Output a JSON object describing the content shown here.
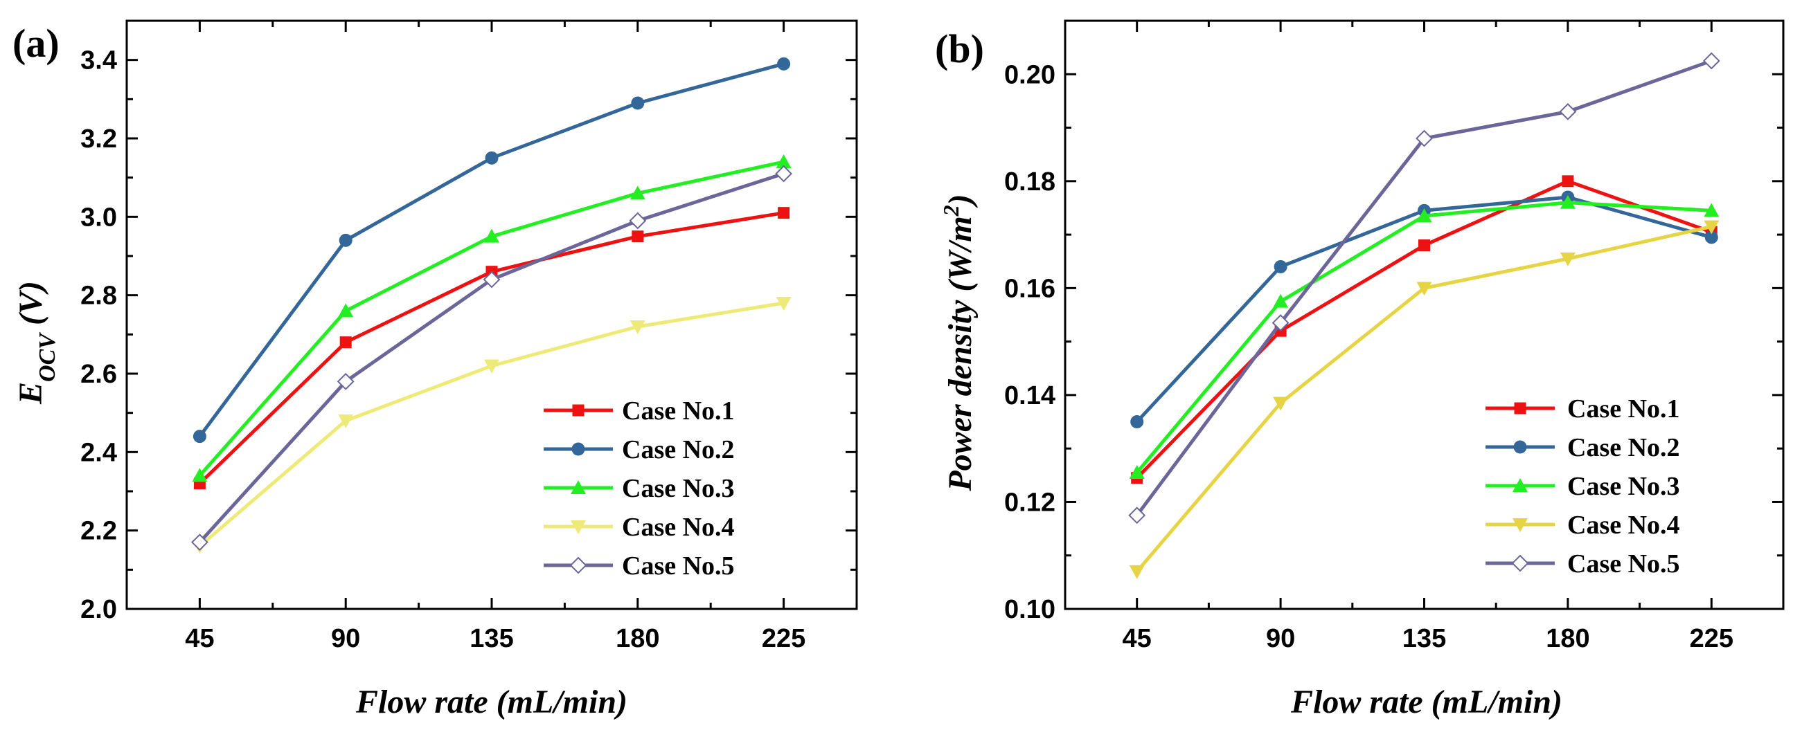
{
  "figure": {
    "panel_a": "(a)",
    "panel_b": "(b)"
  },
  "chart_data": [
    {
      "type": "line",
      "panel": "(a)",
      "xlabel": "Flow rate (mL/min)",
      "ylabel": "E_OCV (V)",
      "ylabel_main": "E",
      "ylabel_sub": "OCV",
      "ylabel_unit": " (V)",
      "x": [
        45,
        90,
        135,
        180,
        225
      ],
      "xlim": [
        22.5,
        247.5
      ],
      "ylim": [
        2.0,
        3.5
      ],
      "xticks": [
        "45",
        "90",
        "135",
        "180",
        "225"
      ],
      "yticks": [
        "2.0",
        "2.2",
        "2.4",
        "2.6",
        "2.8",
        "3.0",
        "3.2",
        "3.4"
      ],
      "legend_position": "bottom-right",
      "series": [
        {
          "name": "Case No.1",
          "color": "#ee1111",
          "marker": "square",
          "values": [
            2.32,
            2.68,
            2.86,
            2.95,
            3.01
          ]
        },
        {
          "name": "Case No.2",
          "color": "#336699",
          "marker": "circle",
          "values": [
            2.44,
            2.94,
            3.15,
            3.29,
            3.39
          ]
        },
        {
          "name": "Case No.3",
          "color": "#22ee22",
          "marker": "triangle-up",
          "values": [
            2.34,
            2.76,
            2.95,
            3.06,
            3.14
          ]
        },
        {
          "name": "Case No.4",
          "color": "#eeea77",
          "marker": "triangle-down",
          "values": [
            2.16,
            2.48,
            2.62,
            2.72,
            2.78
          ]
        },
        {
          "name": "Case No.5",
          "color": "#6b6699",
          "marker": "diamond-open",
          "values": [
            2.17,
            2.58,
            2.84,
            2.99,
            3.11
          ]
        }
      ]
    },
    {
      "type": "line",
      "panel": "(b)",
      "xlabel": "Flow rate (mL/min)",
      "ylabel": "Power density (W/m2)",
      "ylabel_main": "Power density (W/m",
      "ylabel_sup": "2",
      "ylabel_close": ")",
      "x": [
        45,
        90,
        135,
        180,
        225
      ],
      "xlim": [
        22.5,
        247.5
      ],
      "ylim": [
        0.1,
        0.21
      ],
      "xticks": [
        "45",
        "90",
        "135",
        "180",
        "225"
      ],
      "yticks": [
        "0.10",
        "0.12",
        "0.14",
        "0.16",
        "0.18",
        "0.20"
      ],
      "legend_position": "bottom-right",
      "series": [
        {
          "name": "Case No.1",
          "color": "#ee1111",
          "marker": "square",
          "values": [
            0.1245,
            0.152,
            0.168,
            0.18,
            0.1705
          ]
        },
        {
          "name": "Case No.2",
          "color": "#336699",
          "marker": "circle",
          "values": [
            0.135,
            0.164,
            0.1745,
            0.177,
            0.1695
          ]
        },
        {
          "name": "Case No.3",
          "color": "#22ee22",
          "marker": "triangle-up",
          "values": [
            0.1255,
            0.1575,
            0.1735,
            0.176,
            0.1745
          ]
        },
        {
          "name": "Case No.4",
          "color": "#e6d444",
          "marker": "triangle-down",
          "values": [
            0.107,
            0.1385,
            0.16,
            0.1655,
            0.1715
          ]
        },
        {
          "name": "Case No.5",
          "color": "#6b6699",
          "marker": "diamond-open",
          "values": [
            0.1175,
            0.1535,
            0.188,
            0.193,
            0.2025
          ]
        }
      ]
    }
  ]
}
